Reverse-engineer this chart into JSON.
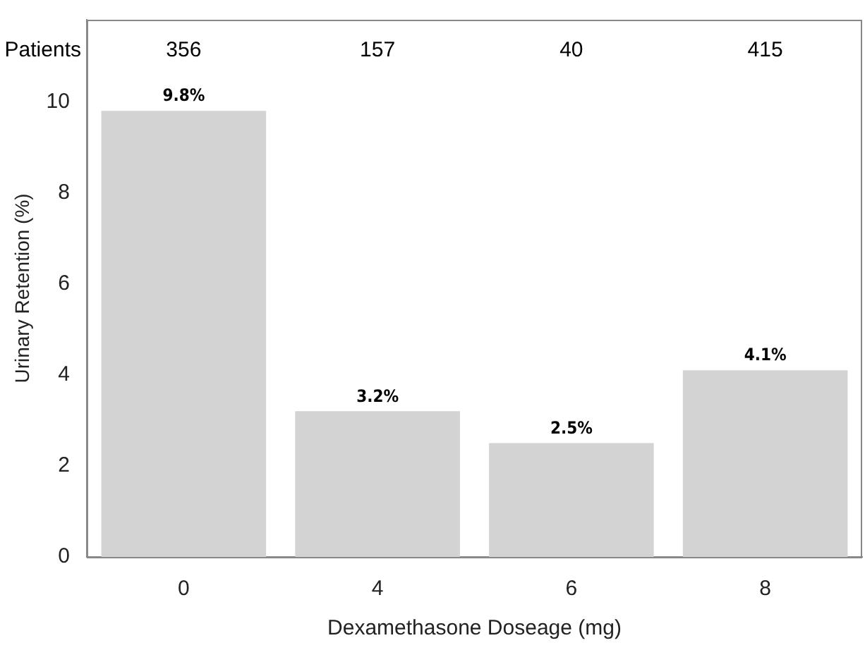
{
  "chart_data": {
    "type": "bar",
    "xlabel": "Dexamethasone Doseage (mg)",
    "ylabel": "Urinary Retention (%)",
    "categories": [
      "0",
      "4",
      "6",
      "8"
    ],
    "values": [
      9.8,
      3.2,
      2.5,
      4.1
    ],
    "value_labels": [
      "9.8%",
      "3.2%",
      "2.5%",
      "4.1%"
    ],
    "color": "#d3d3d3",
    "ylim": [
      0,
      11.8
    ],
    "yticks": [
      0,
      2,
      4,
      6,
      8,
      10
    ],
    "grid": false,
    "legend": false,
    "annotations": [
      "Patients",
      "356",
      "157",
      "40",
      "415"
    ]
  }
}
